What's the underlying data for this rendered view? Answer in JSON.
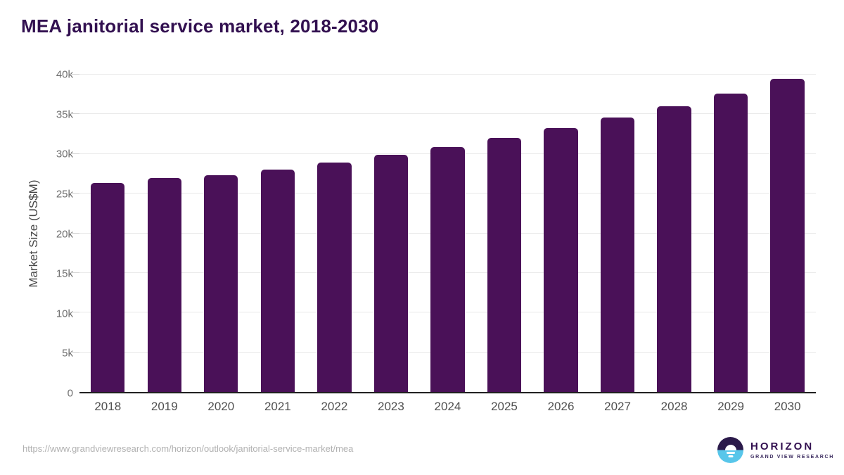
{
  "header": {
    "title": "MEA janitorial service market, 2018-2030"
  },
  "chart_data": {
    "type": "bar",
    "title": "MEA janitorial service market, 2018-2030",
    "categories": [
      "2018",
      "2019",
      "2020",
      "2021",
      "2022",
      "2023",
      "2024",
      "2025",
      "2026",
      "2027",
      "2028",
      "2029",
      "2030"
    ],
    "values": [
      26300,
      26950,
      27300,
      28050,
      28950,
      29850,
      30900,
      32000,
      33250,
      34600,
      36050,
      37650,
      39450
    ],
    "xlabel": "",
    "ylabel": "Market Size (US$M)",
    "ylim": [
      0,
      40000
    ],
    "ytick_step": 5000,
    "ytick_labels": [
      "0",
      "5k",
      "10k",
      "15k",
      "20k",
      "25k",
      "30k",
      "35k",
      "40k"
    ],
    "grid": true,
    "legend": false,
    "bar_color": "#4a1158"
  },
  "footer": {
    "source_url": "https://www.grandviewresearch.com/horizon/outlook/janitorial-service-market/mea",
    "logo": {
      "brand": "HORIZON",
      "sub_brand": "GRAND VIEW RESEARCH",
      "icon": "horizon-sun-icon",
      "icon_top_color": "#2b1a4a",
      "icon_bottom_color": "#58c6ea"
    }
  },
  "colors": {
    "bar": "#4a1158",
    "title": "#321050",
    "axis_title": "#474747",
    "y_tick_label": "#6f6f6f",
    "x_tick_label": "#4f4f4f",
    "gridline": "#e9e9e9",
    "baseline": "#212121",
    "source_url": "#b1b1b1"
  }
}
